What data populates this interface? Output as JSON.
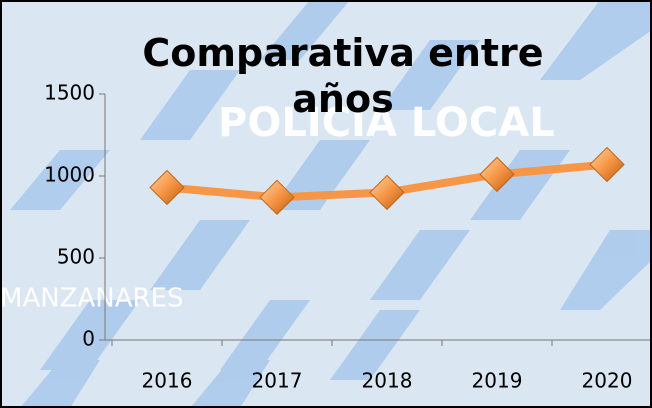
{
  "chart_data": {
    "type": "line",
    "title": "Comparativa entre años",
    "watermarks": [
      "POLICIA LOCAL",
      "MANZANARES"
    ],
    "categories": [
      "2016",
      "2017",
      "2018",
      "2019",
      "2020"
    ],
    "values": [
      930,
      870,
      900,
      1010,
      1070
    ],
    "color": "#f79646",
    "ylim": [
      0,
      1500
    ],
    "yticks": [
      0,
      500,
      1000,
      1500
    ],
    "grid": false
  }
}
